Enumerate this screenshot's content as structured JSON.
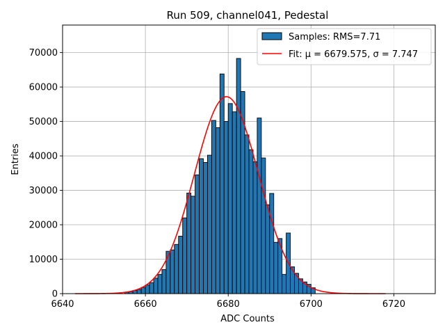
{
  "chart_data": {
    "type": "bar",
    "title": "Run 509, channel041, Pedestal",
    "xlabel": "ADC Counts",
    "ylabel": "Entries",
    "xlim": [
      6640,
      6730
    ],
    "ylim": [
      0,
      78000
    ],
    "grid": true,
    "legend_placement": "top-right",
    "xticks": [
      6640,
      6660,
      6680,
      6700,
      6720
    ],
    "yticks": [
      0,
      10000,
      20000,
      30000,
      40000,
      50000,
      60000,
      70000
    ],
    "bin_width": 1,
    "series": [
      {
        "name": "Samples: RMS=7.71",
        "kind": "histogram",
        "color": "#1f77b4",
        "edgecolor": "#000000",
        "bin_starts": [
          6655,
          6656,
          6657,
          6658,
          6659,
          6660,
          6661,
          6662,
          6663,
          6664,
          6665,
          6666,
          6667,
          6668,
          6669,
          6670,
          6671,
          6672,
          6673,
          6674,
          6675,
          6676,
          6677,
          6678,
          6679,
          6680,
          6681,
          6682,
          6683,
          6684,
          6685,
          6686,
          6687,
          6688,
          6689,
          6690,
          6691,
          6692,
          6693,
          6694,
          6695,
          6696,
          6697,
          6698,
          6699,
          6700
        ],
        "values": [
          400,
          600,
          900,
          1200,
          1800,
          2500,
          3200,
          4500,
          5600,
          7000,
          12300,
          12700,
          14300,
          16700,
          22000,
          29200,
          28300,
          34500,
          39200,
          38100,
          40200,
          50300,
          48200,
          63800,
          50000,
          55200,
          52800,
          68300,
          58700,
          46100,
          41800,
          38300,
          51000,
          39400,
          25800,
          29100,
          14900,
          16000,
          5600,
          17600,
          7800,
          5900,
          4300,
          3400,
          2700,
          1700
        ]
      },
      {
        "name": "Fit: μ = 6679.575, σ = 7.747",
        "kind": "gaussian_fit",
        "color": "#ff0000",
        "mu": 6679.575,
        "sigma": 7.747,
        "amplitude": 57200,
        "x_range": [
          6643,
          6718
        ]
      }
    ]
  }
}
